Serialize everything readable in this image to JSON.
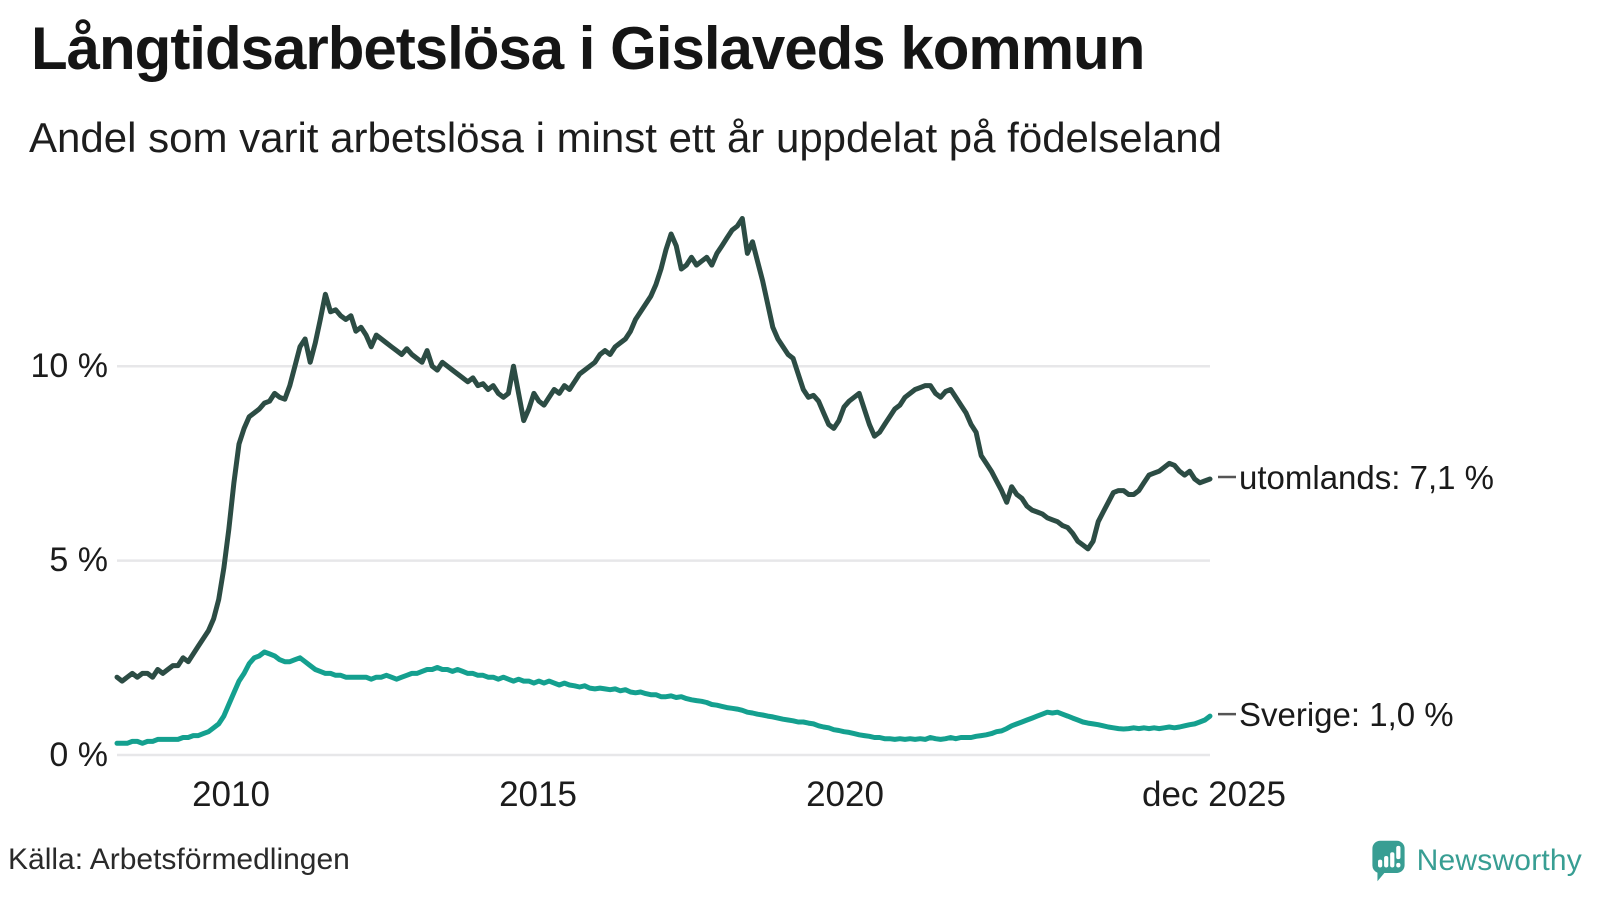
{
  "chart_data": {
    "type": "line",
    "title": "Långtidsarbetslösa i Gislaveds kommun",
    "subtitle": "Andel som varit arbetslösa i minst ett år uppdelat på födelseland",
    "x_unit": "month",
    "x_start": "jan 2008",
    "x_end": "dec 2025",
    "ylim": [
      0,
      14
    ],
    "grid": "horizontal-only",
    "grid_color": "#e7e7e9",
    "legend_position": "line-end-labels",
    "y_ticks": [
      {
        "value": 10,
        "label": "10 %"
      },
      {
        "value": 5,
        "label": "5 %"
      },
      {
        "value": 0,
        "label": "0 %"
      }
    ],
    "x_ticks": [
      {
        "label": "2010"
      },
      {
        "label": "2015"
      },
      {
        "label": "2020"
      },
      {
        "label": "dec 2025"
      }
    ],
    "series": [
      {
        "name": "utomlands",
        "end_label": "utomlands: 7,1 %",
        "end_value": "7,1 %",
        "color": "#2c4c44",
        "values": [
          2.0,
          1.9,
          2.0,
          2.1,
          2.0,
          2.1,
          2.1,
          2.0,
          2.2,
          2.1,
          2.2,
          2.3,
          2.3,
          2.5,
          2.4,
          2.6,
          2.8,
          3.0,
          3.2,
          3.5,
          4.0,
          4.8,
          5.8,
          7.0,
          8.0,
          8.4,
          8.7,
          8.8,
          8.9,
          9.05,
          9.1,
          9.3,
          9.2,
          9.15,
          9.5,
          10.0,
          10.5,
          10.7,
          10.1,
          10.6,
          11.2,
          11.85,
          11.4,
          11.45,
          11.3,
          11.2,
          11.3,
          10.9,
          11.0,
          10.8,
          10.5,
          10.8,
          10.7,
          10.6,
          10.5,
          10.4,
          10.3,
          10.45,
          10.3,
          10.2,
          10.1,
          10.4,
          10.0,
          9.9,
          10.1,
          10.0,
          9.9,
          9.8,
          9.7,
          9.6,
          9.7,
          9.5,
          9.55,
          9.4,
          9.5,
          9.3,
          9.2,
          9.3,
          10.0,
          9.3,
          8.6,
          8.9,
          9.3,
          9.1,
          9.0,
          9.2,
          9.4,
          9.3,
          9.5,
          9.4,
          9.6,
          9.8,
          9.9,
          10.0,
          10.1,
          10.3,
          10.4,
          10.3,
          10.5,
          10.6,
          10.7,
          10.9,
          11.2,
          11.4,
          11.6,
          11.8,
          12.1,
          12.5,
          13.0,
          13.4,
          13.1,
          12.5,
          12.6,
          12.8,
          12.6,
          12.7,
          12.8,
          12.6,
          12.9,
          13.1,
          13.3,
          13.5,
          13.6,
          13.8,
          12.9,
          13.2,
          12.7,
          12.2,
          11.6,
          11.0,
          10.7,
          10.5,
          10.3,
          10.2,
          9.8,
          9.4,
          9.2,
          9.25,
          9.1,
          8.8,
          8.5,
          8.4,
          8.6,
          8.95,
          9.1,
          9.2,
          9.3,
          8.9,
          8.5,
          8.2,
          8.3,
          8.5,
          8.7,
          8.9,
          9.0,
          9.2,
          9.3,
          9.4,
          9.45,
          9.5,
          9.5,
          9.3,
          9.2,
          9.35,
          9.4,
          9.2,
          9.0,
          8.8,
          8.5,
          8.3,
          7.7,
          7.5,
          7.3,
          7.05,
          6.8,
          6.5,
          6.9,
          6.7,
          6.6,
          6.4,
          6.3,
          6.25,
          6.2,
          6.1,
          6.05,
          6.0,
          5.9,
          5.85,
          5.7,
          5.5,
          5.4,
          5.3,
          5.5,
          6.0,
          6.25,
          6.5,
          6.75,
          6.8,
          6.8,
          6.7,
          6.7,
          6.8,
          7.0,
          7.2,
          7.25,
          7.3,
          7.4,
          7.5,
          7.45,
          7.3,
          7.2,
          7.3,
          7.1,
          7.0,
          7.05,
          7.1
        ]
      },
      {
        "name": "Sverige",
        "end_label": "Sverige: 1,0 %",
        "end_value": "1,0 %",
        "color": "#14a08f",
        "values": [
          0.3,
          0.3,
          0.3,
          0.35,
          0.35,
          0.3,
          0.35,
          0.35,
          0.4,
          0.4,
          0.4,
          0.4,
          0.4,
          0.45,
          0.45,
          0.5,
          0.5,
          0.55,
          0.6,
          0.7,
          0.8,
          1.0,
          1.3,
          1.6,
          1.9,
          2.1,
          2.35,
          2.5,
          2.55,
          2.65,
          2.6,
          2.55,
          2.45,
          2.4,
          2.4,
          2.45,
          2.5,
          2.4,
          2.3,
          2.2,
          2.15,
          2.1,
          2.1,
          2.05,
          2.05,
          2.0,
          2.0,
          2.0,
          2.0,
          2.0,
          1.95,
          2.0,
          2.0,
          2.05,
          2.0,
          1.95,
          2.0,
          2.05,
          2.1,
          2.1,
          2.15,
          2.2,
          2.2,
          2.25,
          2.2,
          2.2,
          2.15,
          2.2,
          2.15,
          2.1,
          2.1,
          2.05,
          2.05,
          2.0,
          2.0,
          1.95,
          2.0,
          1.95,
          1.9,
          1.95,
          1.9,
          1.9,
          1.85,
          1.9,
          1.85,
          1.9,
          1.85,
          1.8,
          1.85,
          1.8,
          1.78,
          1.75,
          1.78,
          1.72,
          1.7,
          1.72,
          1.7,
          1.68,
          1.7,
          1.65,
          1.68,
          1.62,
          1.6,
          1.62,
          1.58,
          1.55,
          1.55,
          1.5,
          1.5,
          1.52,
          1.48,
          1.5,
          1.45,
          1.42,
          1.4,
          1.38,
          1.35,
          1.3,
          1.28,
          1.25,
          1.22,
          1.2,
          1.18,
          1.15,
          1.1,
          1.08,
          1.05,
          1.03,
          1.0,
          0.98,
          0.95,
          0.92,
          0.9,
          0.88,
          0.85,
          0.85,
          0.82,
          0.8,
          0.75,
          0.72,
          0.7,
          0.65,
          0.63,
          0.6,
          0.58,
          0.55,
          0.52,
          0.5,
          0.48,
          0.45,
          0.45,
          0.42,
          0.42,
          0.4,
          0.42,
          0.4,
          0.42,
          0.4,
          0.42,
          0.4,
          0.45,
          0.42,
          0.4,
          0.42,
          0.45,
          0.42,
          0.45,
          0.45,
          0.45,
          0.48,
          0.5,
          0.52,
          0.55,
          0.6,
          0.62,
          0.68,
          0.75,
          0.8,
          0.85,
          0.9,
          0.95,
          1.0,
          1.05,
          1.1,
          1.08,
          1.1,
          1.05,
          1.0,
          0.95,
          0.9,
          0.85,
          0.82,
          0.8,
          0.78,
          0.75,
          0.72,
          0.7,
          0.68,
          0.67,
          0.68,
          0.7,
          0.68,
          0.7,
          0.68,
          0.7,
          0.68,
          0.7,
          0.72,
          0.7,
          0.72,
          0.75,
          0.78,
          0.8,
          0.85,
          0.9,
          1.0
        ]
      }
    ]
  },
  "footer": {
    "source": "Källa: Arbetsförmedlingen",
    "logo_text": "Newsworthy",
    "logo_icon": "newsworthy-speech-bubble-chart-icon",
    "logo_color": "#389e93"
  }
}
